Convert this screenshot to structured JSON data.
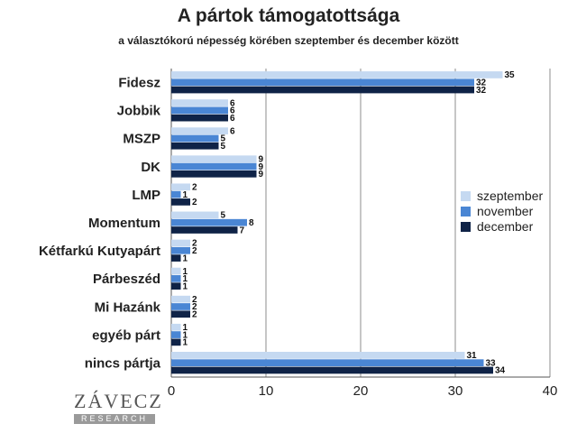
{
  "title": "A pártok támogatottsága",
  "subtitle": "a választókorú népesség körében szeptember és december között",
  "logo": {
    "name": "ZÁVECZ",
    "sub": "RESEARCH"
  },
  "chart_data": {
    "type": "bar",
    "orientation": "horizontal",
    "title": "A pártok támogatottsága",
    "subtitle": "a választókorú népesség körében szeptember és december között",
    "categories": [
      "Fidesz",
      "Jobbik",
      "MSZP",
      "DK",
      "LMP",
      "Momentum",
      "Kétfarkú Kutyapárt",
      "Párbeszéd",
      "Mi Hazánk",
      "egyéb párt",
      "nincs pártja"
    ],
    "series": [
      {
        "name": "szeptember",
        "color": "#c5d9f1",
        "values": [
          35,
          6,
          6,
          9,
          2,
          5,
          2,
          1,
          2,
          1,
          31
        ]
      },
      {
        "name": "november",
        "color": "#4a86d4",
        "values": [
          32,
          6,
          5,
          9,
          1,
          8,
          2,
          1,
          2,
          1,
          33
        ]
      },
      {
        "name": "december",
        "color": "#0f2347",
        "values": [
          32,
          6,
          5,
          9,
          2,
          7,
          1,
          1,
          2,
          1,
          34
        ]
      }
    ],
    "xlim": [
      0,
      40
    ],
    "xticks": [
      0,
      10,
      20,
      30,
      40
    ],
    "grid": true,
    "legend": "right"
  }
}
